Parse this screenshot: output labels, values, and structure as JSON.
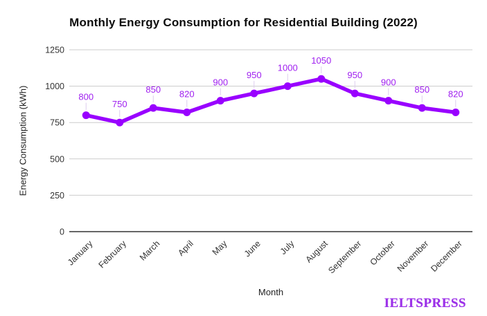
{
  "chart_data": {
    "type": "line",
    "title": "Monthly Energy Consumption for Residential Building (2022)",
    "xlabel": "Month",
    "ylabel": "Energy Consumption (kWh)",
    "categories": [
      "January",
      "February",
      "March",
      "April",
      "May",
      "June",
      "July",
      "August",
      "September",
      "October",
      "November",
      "December"
    ],
    "values": [
      800,
      750,
      850,
      820,
      900,
      950,
      1000,
      1050,
      950,
      900,
      850,
      820
    ],
    "ylim": [
      0,
      1250
    ],
    "yticks": [
      0,
      250,
      500,
      750,
      1000,
      1250
    ],
    "grid": true,
    "legend": "none",
    "show_data_labels": true,
    "line_color": "#9900ff",
    "point_color": "#9900ff",
    "data_label_color": "#a020f0"
  },
  "watermark": {
    "text": "IELTSPRESS",
    "color": "#9b2fe8"
  }
}
